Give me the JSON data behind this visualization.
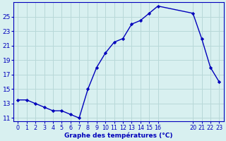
{
  "x_hours": [
    0,
    1,
    2,
    3,
    4,
    5,
    6,
    7,
    8,
    9,
    10,
    11,
    12,
    13,
    14,
    15,
    16,
    20,
    21,
    22,
    23
  ],
  "temps": [
    13.5,
    13.5,
    13.0,
    12.5,
    12.0,
    12.0,
    11.5,
    11.0,
    15.0,
    18.0,
    20.0,
    21.5,
    22.0,
    24.0,
    24.5,
    25.5,
    26.5,
    25.5,
    22.0,
    18.0,
    16.0
  ],
  "line_color": "#0000bb",
  "marker_color": "#0000bb",
  "bg_color": "#d8f0f0",
  "grid_color": "#b8d8d8",
  "axis_color": "#0000bb",
  "xlabel": "Graphe des températures (°C)",
  "xlabel_color": "#0000bb",
  "ylim": [
    10.5,
    27.0
  ],
  "xlim": [
    -0.5,
    23.5
  ],
  "yticks": [
    11,
    13,
    15,
    17,
    19,
    21,
    23,
    25
  ],
  "xtick_shown": [
    0,
    1,
    2,
    3,
    4,
    5,
    6,
    7,
    8,
    9,
    10,
    11,
    12,
    13,
    14,
    15,
    16,
    20,
    21,
    22,
    23
  ],
  "xtick_labels_shown": [
    "0",
    "1",
    "2",
    "3",
    "4",
    "5",
    "6",
    "7",
    "8",
    "9",
    "10",
    "11",
    "12",
    "13",
    "14",
    "15",
    "16",
    "20",
    "21",
    "22",
    "23"
  ],
  "tick_color": "#0000bb",
  "figsize": [
    3.2,
    2.0
  ],
  "dpi": 100
}
